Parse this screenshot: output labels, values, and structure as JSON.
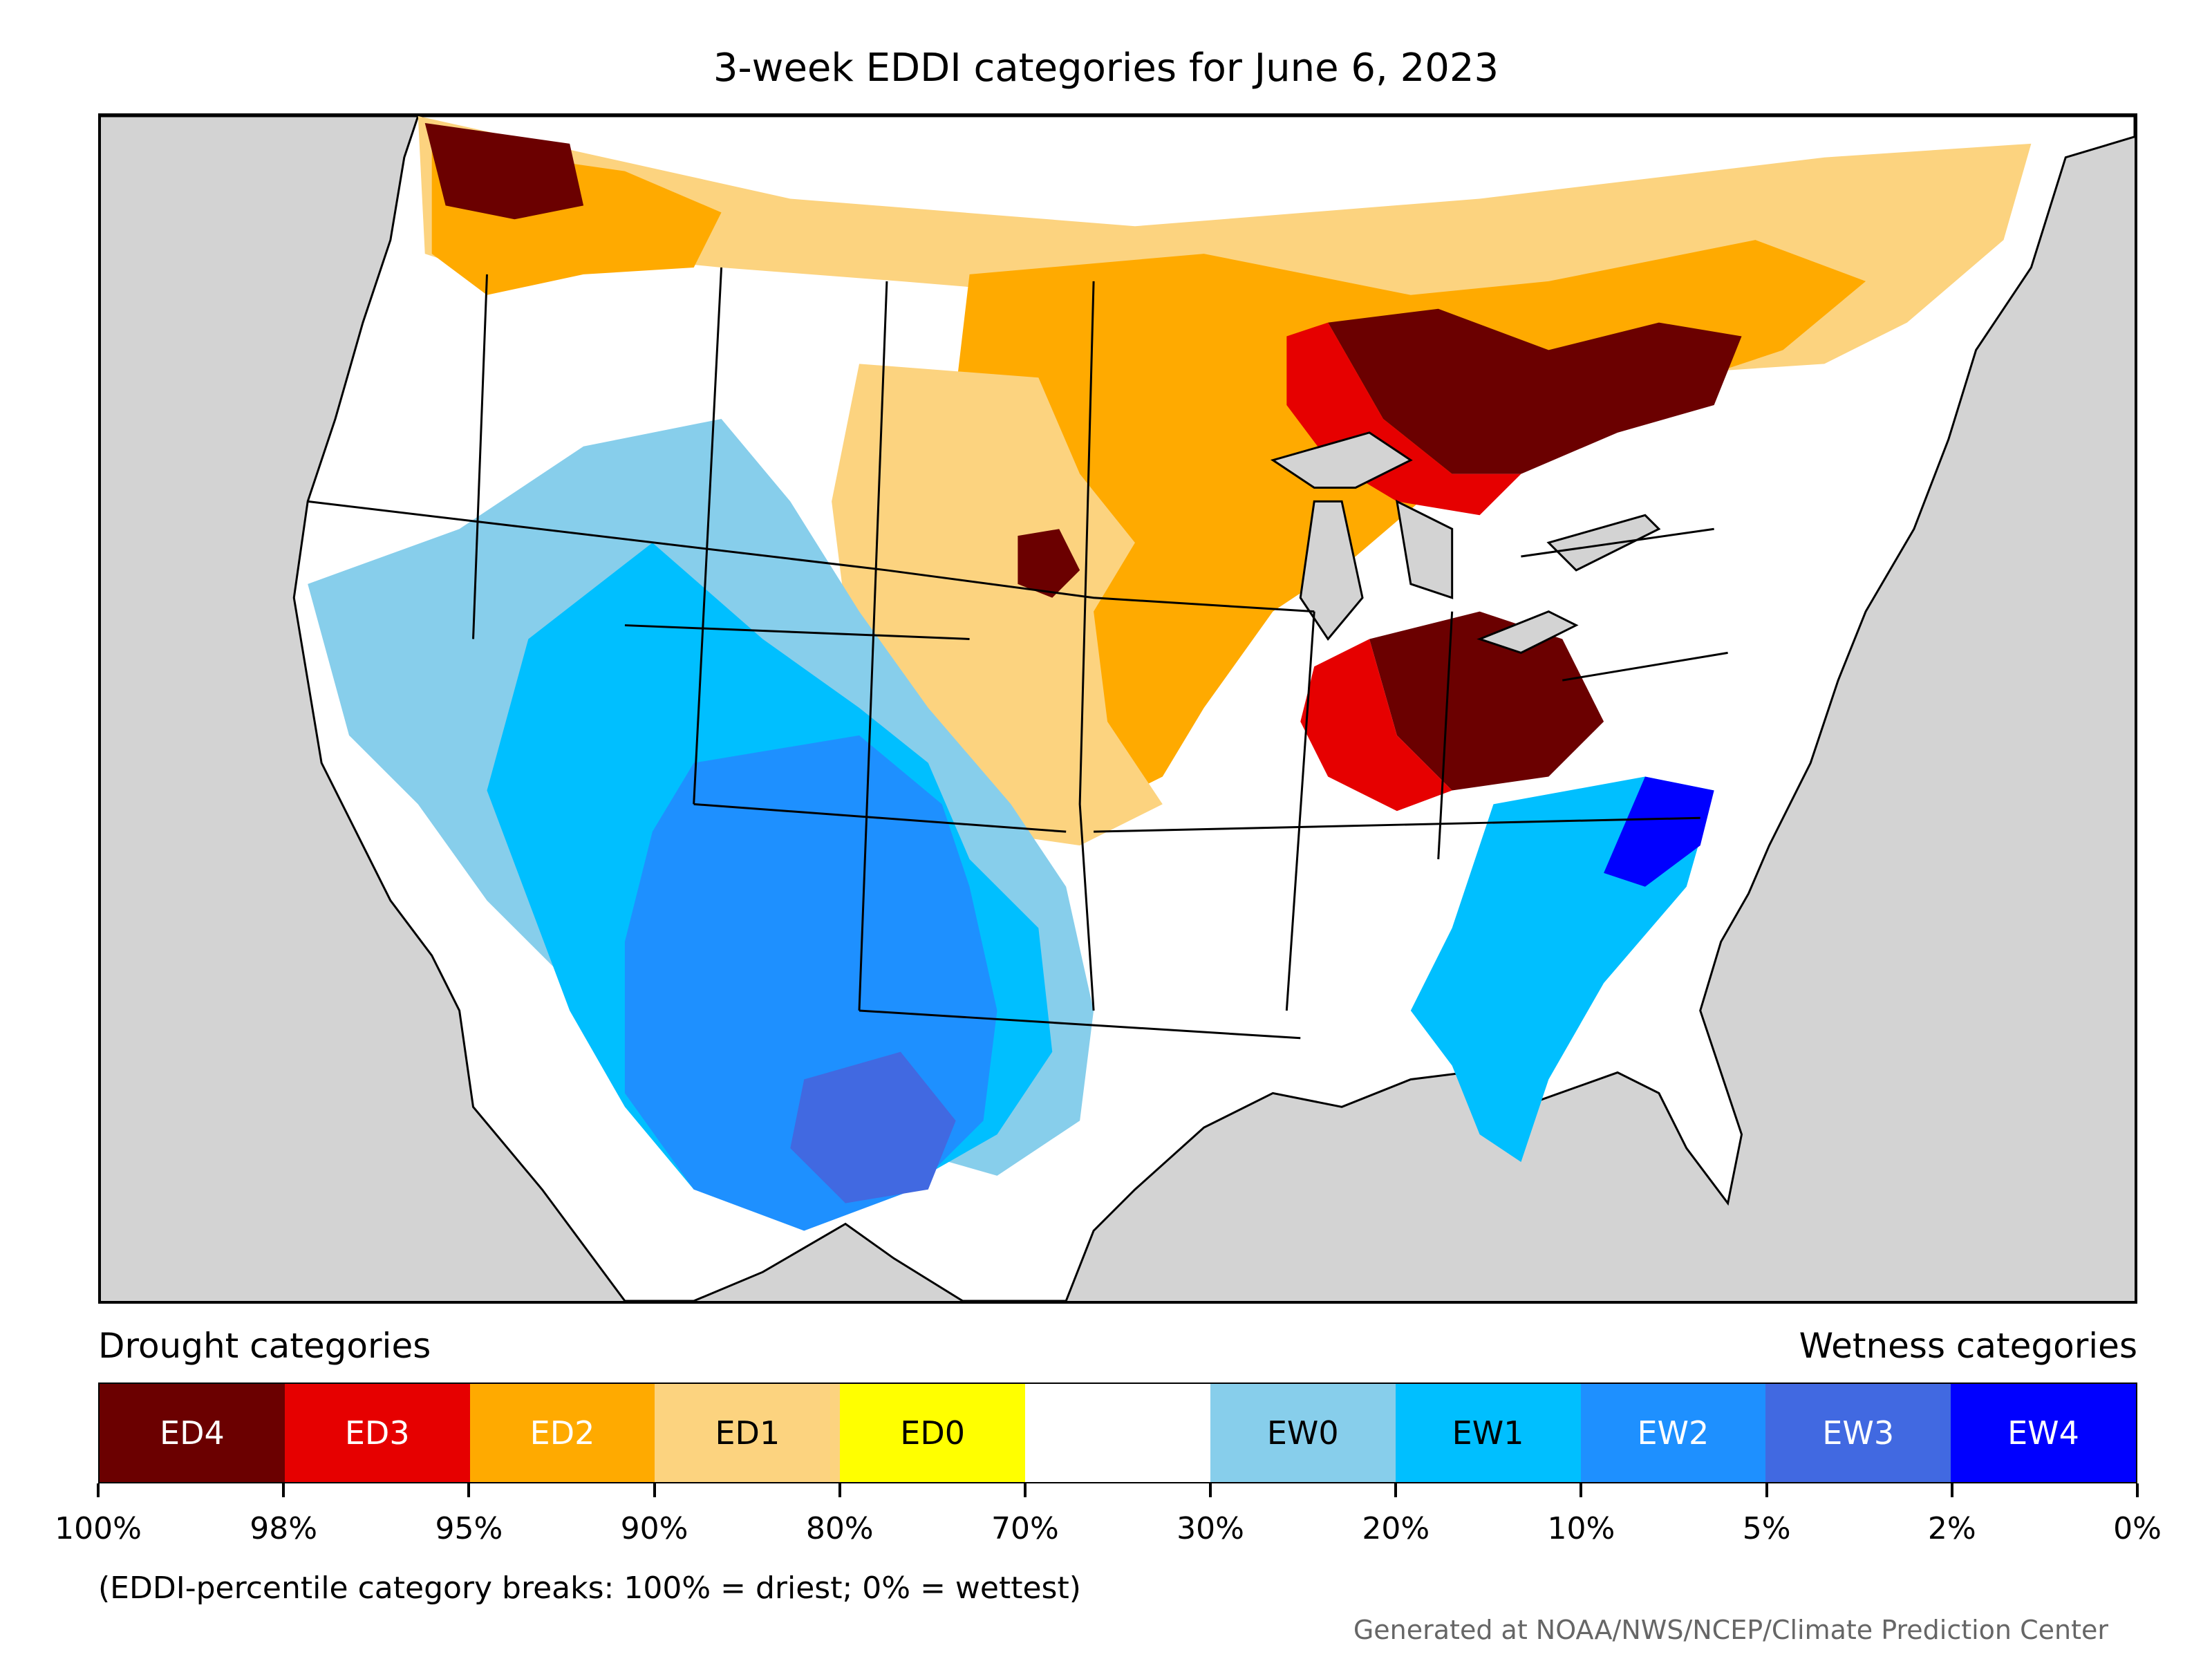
{
  "title": "3-week EDDI categories for June 6, 2023",
  "legend": {
    "drought_heading": "Drought categories",
    "wetness_heading": "Wetness categories",
    "categories": [
      {
        "label": "ED4",
        "color": "#6b0000",
        "text_color": "#ffffff"
      },
      {
        "label": "ED3",
        "color": "#e60000",
        "text_color": "#ffffff"
      },
      {
        "label": "ED2",
        "color": "#ffaa00",
        "text_color": "#ffffff"
      },
      {
        "label": "ED1",
        "color": "#fcd37f",
        "text_color": "#000000"
      },
      {
        "label": "ED0",
        "color": "#ffff00",
        "text_color": "#000000"
      },
      {
        "label": "",
        "color": "#ffffff",
        "text_color": "#000000"
      },
      {
        "label": "EW0",
        "color": "#87ceeb",
        "text_color": "#000000"
      },
      {
        "label": "EW1",
        "color": "#00bfff",
        "text_color": "#000000"
      },
      {
        "label": "EW2",
        "color": "#1e90ff",
        "text_color": "#ffffff"
      },
      {
        "label": "EW3",
        "color": "#4169e1",
        "text_color": "#ffffff"
      },
      {
        "label": "EW4",
        "color": "#0000ff",
        "text_color": "#ffffff"
      }
    ],
    "breaks": [
      "100%",
      "98%",
      "95%",
      "90%",
      "80%",
      "70%",
      "30%",
      "20%",
      "10%",
      "5%",
      "2%",
      "0%"
    ]
  },
  "note": "(EDDI-percentile category breaks: 100% = driest; 0% = wettest)",
  "credit": "Generated at NOAA/NWS/NCEP/Climate Prediction Center",
  "map": {
    "background_color": "#d3d3d3",
    "land_color": "#ffffff",
    "border_color": "#000000"
  }
}
